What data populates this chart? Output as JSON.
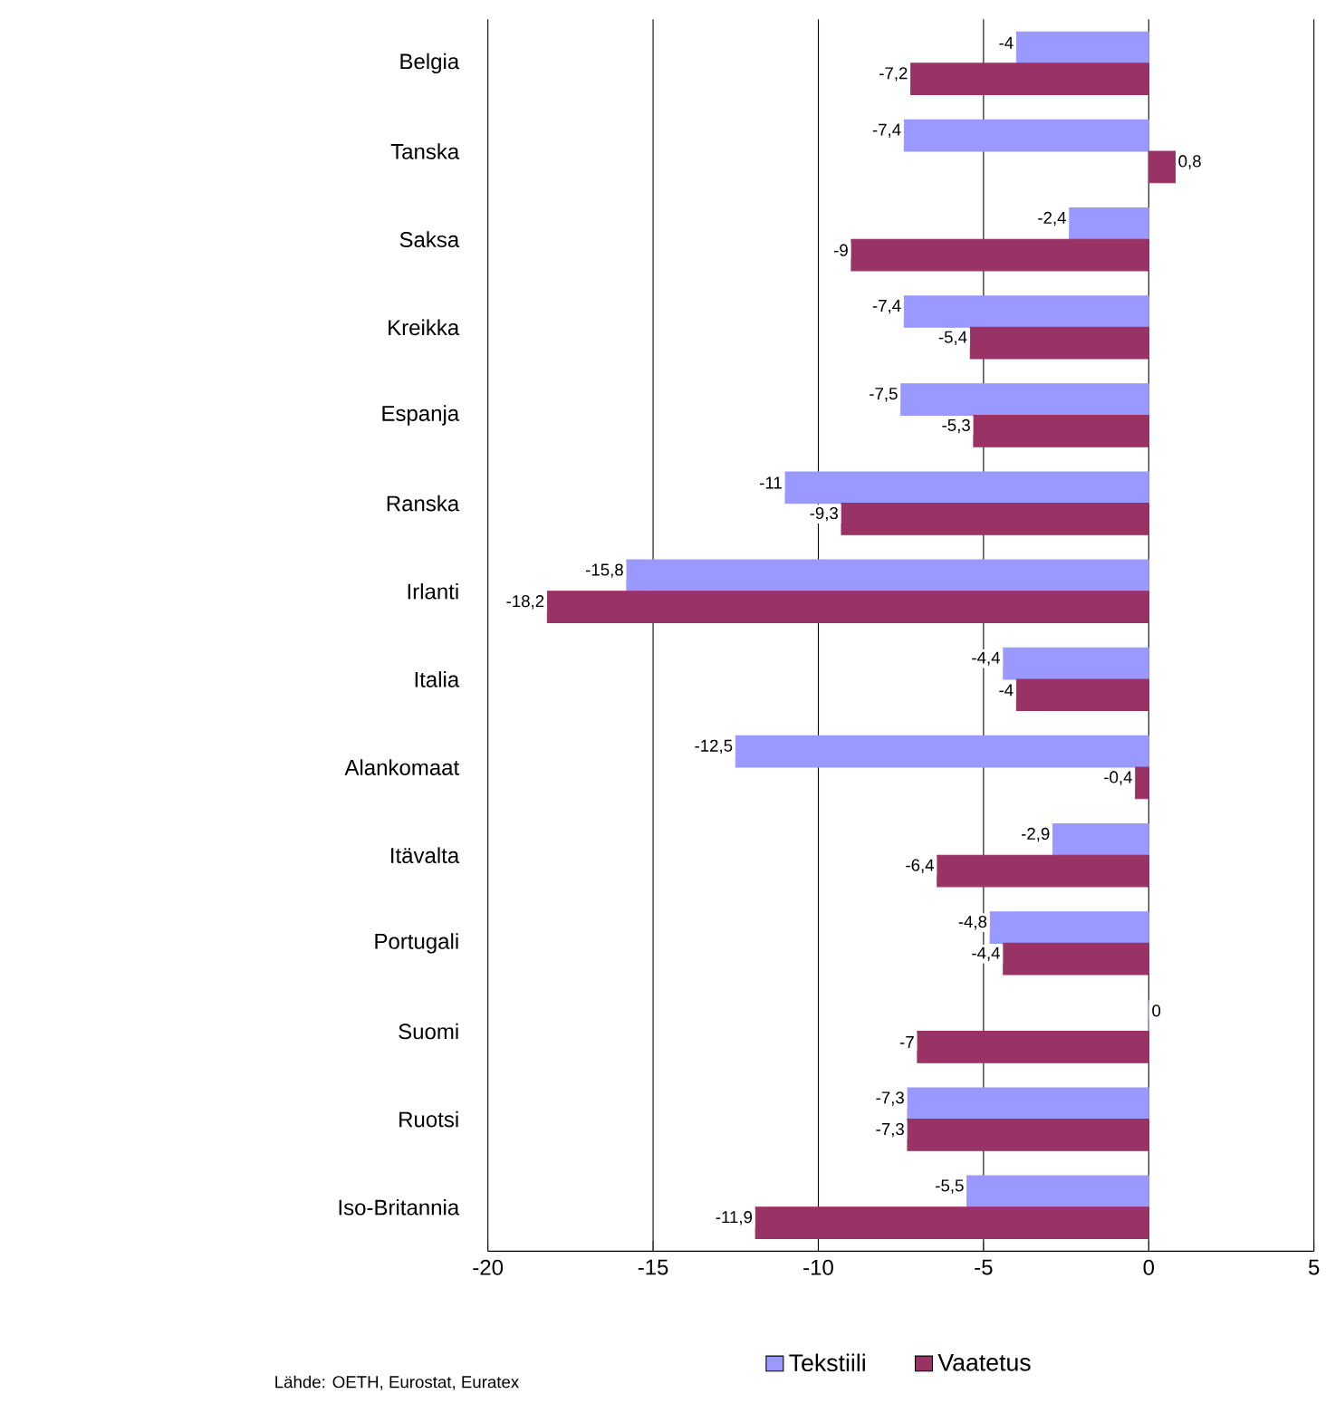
{
  "chart_data": {
    "type": "bar",
    "orientation": "horizontal",
    "categories": [
      "Belgia",
      "Tanska",
      "Saksa",
      "Kreikka",
      "Espanja",
      "Ranska",
      "Irlanti",
      "Italia",
      "Alankomaat",
      "Itävalta",
      "Portugali",
      "Suomi",
      "Ruotsi",
      "Iso-Britannia"
    ],
    "series": [
      {
        "name": "Tekstiili",
        "color": "#9999ff",
        "values": [
          -4,
          -7.4,
          -2.4,
          -7.4,
          -7.5,
          -11,
          -15.8,
          -4.4,
          -12.5,
          -2.9,
          -4.8,
          0,
          -7.3,
          -5.5
        ],
        "value_labels": [
          "-4",
          "-7,4",
          "-2,4",
          "-7,4",
          "-7,5",
          "-11",
          "-15,8",
          "-4,4",
          "-12,5",
          "-2,9",
          "-4,8",
          "0",
          "-7,3",
          "-5,5"
        ]
      },
      {
        "name": "Vaatetus",
        "color": "#993366",
        "values": [
          -7.2,
          0.8,
          -9,
          -5.4,
          -5.3,
          -9.3,
          -18.2,
          -4,
          -0.4,
          -6.4,
          -4.4,
          -7,
          -7.3,
          -11.9
        ],
        "value_labels": [
          "-7,2",
          "0,8",
          "-9",
          "-5,4",
          "-5,3",
          "-9,3",
          "-18,2",
          "-4",
          "-0,4",
          "-6,4",
          "-4,4",
          "-7",
          "-7,3",
          "-11,9"
        ]
      }
    ],
    "xlim": [
      -20,
      5
    ],
    "xticks": [
      -20,
      -15,
      -10,
      -5,
      0,
      5
    ],
    "grid": "x",
    "legend": "bottom",
    "annotations": [
      "Lähde: OETH, Eurostat, Euratex"
    ]
  }
}
